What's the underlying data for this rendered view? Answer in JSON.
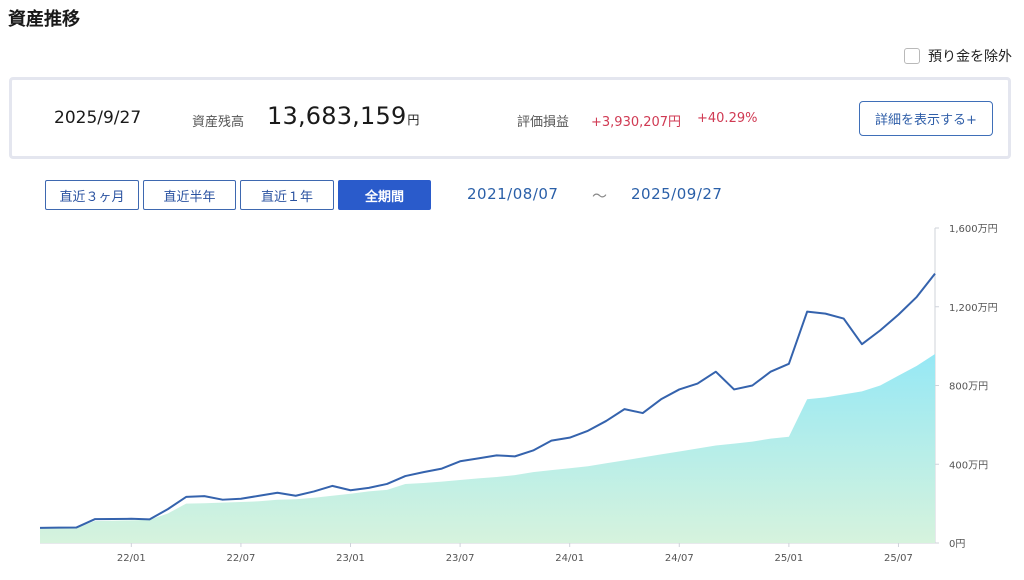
{
  "header": {
    "title": "資産推移"
  },
  "options": {
    "exclude_deposit_label": "預り金を除外"
  },
  "summary": {
    "date": "2025/9/27",
    "balance_label": "資産残高",
    "balance_value": "13,683,159",
    "balance_unit": "円",
    "gain_label": "評価損益",
    "gain_value": "+3,930,207円",
    "gain_pct": "+40.29%",
    "detail_button": "詳細を表示する+"
  },
  "period": {
    "buttons": [
      "直近３ヶ月",
      "直近半年",
      "直近１年",
      "全期間"
    ],
    "active": "全期間",
    "from": "2021/08/07",
    "separator": "〜",
    "to": "2025/09/27"
  },
  "colors": {
    "line": "#3563ad",
    "area_top": "#96e8f5",
    "area_bottom": "#d6f3dd",
    "accent": "#2a5bcb",
    "gain": "#d03a53"
  },
  "chart_data": {
    "type": "area",
    "y_unit": "万円",
    "ylim": [
      0,
      1600
    ],
    "y_ticks": [
      "1,600万円",
      "1,200万円",
      "800万円",
      "400万円",
      "0円"
    ],
    "x_ticks": [
      "22/01",
      "22/07",
      "23/01",
      "23/07",
      "24/01",
      "24/07",
      "25/01",
      "25/07"
    ],
    "x_range": [
      "2021-08",
      "2025-09"
    ],
    "series": [
      {
        "type": "line",
        "points": [
          [
            "2021-08",
            77
          ],
          [
            "2021-09",
            78
          ],
          [
            "2021-10",
            79
          ],
          [
            "2021-11",
            121
          ],
          [
            "2021-12",
            122
          ],
          [
            "2022-01",
            123
          ],
          [
            "2022-02",
            120
          ],
          [
            "2022-03",
            172
          ],
          [
            "2022-04",
            234
          ],
          [
            "2022-05",
            238
          ],
          [
            "2022-06",
            220
          ],
          [
            "2022-07",
            225
          ],
          [
            "2022-08",
            240
          ],
          [
            "2022-09",
            255
          ],
          [
            "2022-10",
            240
          ],
          [
            "2022-11",
            262
          ],
          [
            "2022-12",
            290
          ],
          [
            "2023-01",
            268
          ],
          [
            "2023-02",
            280
          ],
          [
            "2023-03",
            300
          ],
          [
            "2023-04",
            340
          ],
          [
            "2023-05",
            360
          ],
          [
            "2023-06",
            378
          ],
          [
            "2023-07",
            415
          ],
          [
            "2023-08",
            430
          ],
          [
            "2023-09",
            445
          ],
          [
            "2023-10",
            440
          ],
          [
            "2023-11",
            470
          ],
          [
            "2023-12",
            520
          ],
          [
            "2024-01",
            535
          ],
          [
            "2024-02",
            570
          ],
          [
            "2024-03",
            620
          ],
          [
            "2024-04",
            680
          ],
          [
            "2024-05",
            660
          ],
          [
            "2024-06",
            730
          ],
          [
            "2024-07",
            780
          ],
          [
            "2024-08",
            810
          ],
          [
            "2024-09",
            870
          ],
          [
            "2024-10",
            780
          ],
          [
            "2024-11",
            800
          ],
          [
            "2024-12",
            870
          ],
          [
            "2025-01",
            910
          ],
          [
            "2025-02",
            1175
          ],
          [
            "2025-03",
            1165
          ],
          [
            "2025-04",
            1140
          ],
          [
            "2025-05",
            1010
          ],
          [
            "2025-06",
            1080
          ],
          [
            "2025-07",
            1160
          ],
          [
            "2025-08",
            1250
          ],
          [
            "2025-09",
            1368
          ]
        ]
      },
      {
        "type": "area",
        "points": [
          [
            "2021-08",
            75
          ],
          [
            "2021-09",
            76
          ],
          [
            "2021-10",
            77
          ],
          [
            "2021-11",
            112
          ],
          [
            "2021-12",
            113
          ],
          [
            "2022-01",
            115
          ],
          [
            "2022-02",
            118
          ],
          [
            "2022-03",
            150
          ],
          [
            "2022-04",
            200
          ],
          [
            "2022-05",
            202
          ],
          [
            "2022-06",
            205
          ],
          [
            "2022-07",
            208
          ],
          [
            "2022-08",
            212
          ],
          [
            "2022-09",
            220
          ],
          [
            "2022-10",
            222
          ],
          [
            "2022-11",
            230
          ],
          [
            "2022-12",
            240
          ],
          [
            "2023-01",
            250
          ],
          [
            "2023-02",
            262
          ],
          [
            "2023-03",
            270
          ],
          [
            "2023-04",
            300
          ],
          [
            "2023-05",
            305
          ],
          [
            "2023-06",
            312
          ],
          [
            "2023-07",
            320
          ],
          [
            "2023-08",
            328
          ],
          [
            "2023-09",
            335
          ],
          [
            "2023-10",
            345
          ],
          [
            "2023-11",
            360
          ],
          [
            "2023-12",
            370
          ],
          [
            "2024-01",
            380
          ],
          [
            "2024-02",
            390
          ],
          [
            "2024-03",
            405
          ],
          [
            "2024-04",
            420
          ],
          [
            "2024-05",
            435
          ],
          [
            "2024-06",
            450
          ],
          [
            "2024-07",
            465
          ],
          [
            "2024-08",
            480
          ],
          [
            "2024-09",
            495
          ],
          [
            "2024-10",
            505
          ],
          [
            "2024-11",
            515
          ],
          [
            "2024-12",
            530
          ],
          [
            "2025-01",
            540
          ],
          [
            "2025-02",
            730
          ],
          [
            "2025-03",
            740
          ],
          [
            "2025-04",
            755
          ],
          [
            "2025-05",
            770
          ],
          [
            "2025-06",
            800
          ],
          [
            "2025-07",
            850
          ],
          [
            "2025-08",
            900
          ],
          [
            "2025-09",
            960
          ]
        ]
      }
    ]
  }
}
